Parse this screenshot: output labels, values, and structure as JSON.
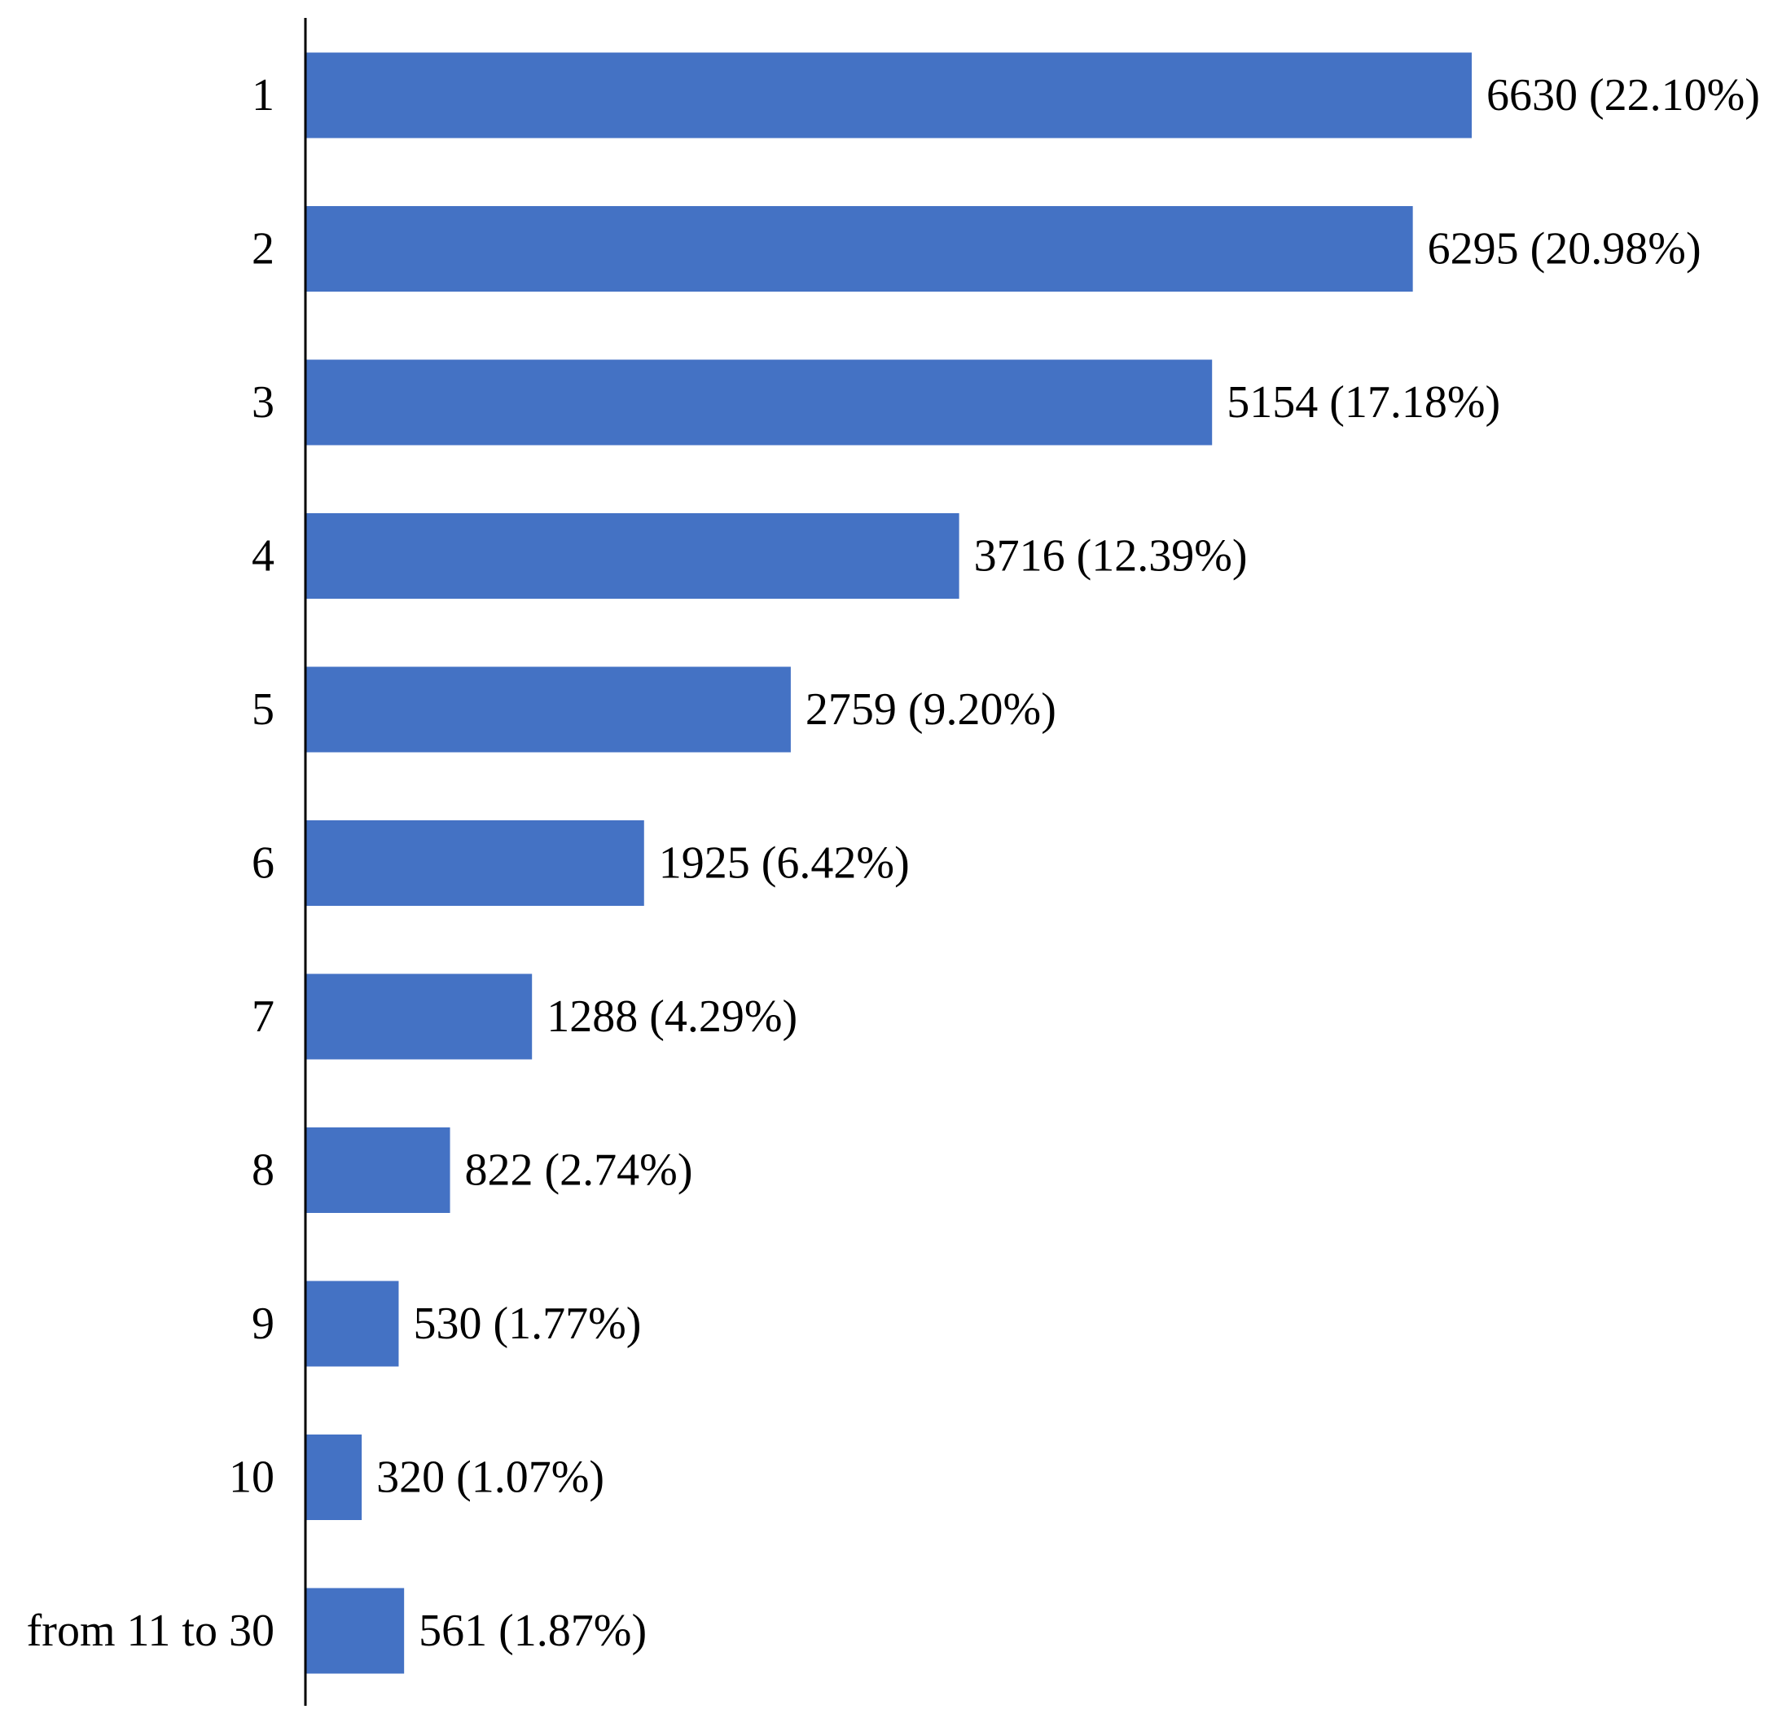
{
  "chart_data": {
    "type": "bar",
    "orientation": "horizontal",
    "title": "",
    "xlabel": "",
    "ylabel": "",
    "grid": false,
    "legend": "none",
    "bar_color": "#4472C4",
    "axis_color": "#000000",
    "xlim": [
      0,
      6630
    ],
    "categories": [
      "1",
      "2",
      "3",
      "4",
      "5",
      "6",
      "7",
      "8",
      "9",
      "10",
      "from 11 to 30"
    ],
    "values": [
      6630,
      6295,
      5154,
      3716,
      2759,
      1925,
      1288,
      822,
      530,
      320,
      561
    ],
    "data_labels": [
      "6630 (22.10%)",
      "6295 (20.98%)",
      "5154 (17.18%)",
      "3716 (12.39%)",
      "2759 (9.20%)",
      "1925 (6.42%)",
      "1288 (4.29%)",
      "822 (2.74%)",
      "530 (1.77%)",
      "320 (1.07%)",
      "561 (1.87%)"
    ]
  }
}
